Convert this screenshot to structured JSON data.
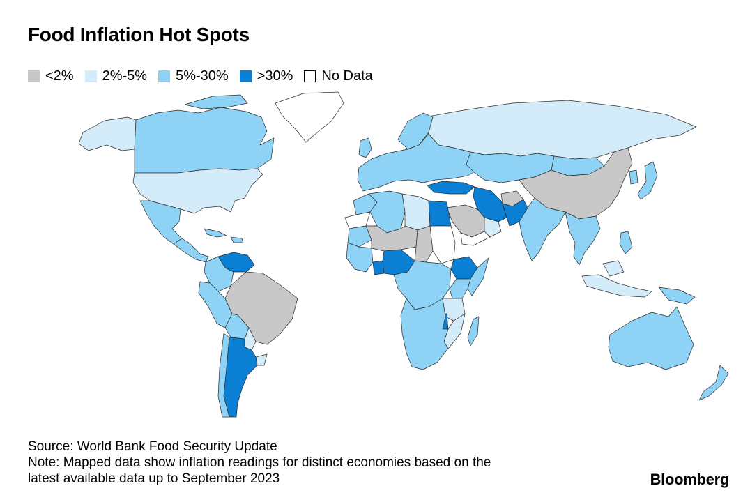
{
  "title": "Food Inflation Hot Spots",
  "legend": [
    {
      "label": "<2%",
      "color": "#c8c8c8",
      "key": "lt2"
    },
    {
      "label": "2%-5%",
      "color": "#d4ecfa",
      "key": "2to5"
    },
    {
      "label": "5%-30%",
      "color": "#8ed3f5",
      "key": "5to30"
    },
    {
      "label": ">30%",
      "color": "#0a7fd4",
      "key": "gt30"
    },
    {
      "label": "No Data",
      "color": "#ffffff",
      "key": "nodata"
    }
  ],
  "source": "Source: World Bank Food Security Update",
  "note_line1": "Note: Mapped data show inflation readings for distinct economies based on the",
  "note_line2": "latest available data up to September 2023",
  "brand": "Bloomberg",
  "regions": [
    {
      "id": "canada",
      "category": "5to30"
    },
    {
      "id": "alaska",
      "category": "2to5"
    },
    {
      "id": "greenland",
      "category": "nodata"
    },
    {
      "id": "usa",
      "category": "2to5"
    },
    {
      "id": "mexico",
      "category": "5to30"
    },
    {
      "id": "central-america",
      "category": "5to30"
    },
    {
      "id": "caribbean",
      "category": "5to30"
    },
    {
      "id": "venezuela",
      "category": "gt30"
    },
    {
      "id": "colombia",
      "category": "5to30"
    },
    {
      "id": "peru-ecuador",
      "category": "5to30"
    },
    {
      "id": "brazil",
      "category": "lt2"
    },
    {
      "id": "bolivia",
      "category": "5to30"
    },
    {
      "id": "paraguay",
      "category": "2to5"
    },
    {
      "id": "chile",
      "category": "5to30"
    },
    {
      "id": "argentina",
      "category": "gt30"
    },
    {
      "id": "uruguay",
      "category": "2to5"
    },
    {
      "id": "russia",
      "category": "2to5"
    },
    {
      "id": "europe",
      "category": "5to30"
    },
    {
      "id": "scandinavia",
      "category": "5to30"
    },
    {
      "id": "uk",
      "category": "5to30"
    },
    {
      "id": "turkey",
      "category": "gt30"
    },
    {
      "id": "iran",
      "category": "gt30"
    },
    {
      "id": "pakistan",
      "category": "gt30"
    },
    {
      "id": "afghanistan",
      "category": "lt2"
    },
    {
      "id": "kazakhstan",
      "category": "5to30"
    },
    {
      "id": "mongolia",
      "category": "5to30"
    },
    {
      "id": "china",
      "category": "lt2"
    },
    {
      "id": "india",
      "category": "5to30"
    },
    {
      "id": "se-asia",
      "category": "5to30"
    },
    {
      "id": "japan",
      "category": "5to30"
    },
    {
      "id": "korea",
      "category": "5to30"
    },
    {
      "id": "philippines",
      "category": "5to30"
    },
    {
      "id": "indonesia",
      "category": "2to5"
    },
    {
      "id": "papua",
      "category": "5to30"
    },
    {
      "id": "saudi-arabia",
      "category": "lt2"
    },
    {
      "id": "yemen",
      "category": "nodata"
    },
    {
      "id": "oman",
      "category": "2to5"
    },
    {
      "id": "egypt",
      "category": "gt30"
    },
    {
      "id": "libya",
      "category": "2to5"
    },
    {
      "id": "algeria",
      "category": "5to30"
    },
    {
      "id": "morocco",
      "category": "5to30"
    },
    {
      "id": "western-sahara",
      "category": "nodata"
    },
    {
      "id": "mauritania",
      "category": "5to30"
    },
    {
      "id": "mali-niger",
      "category": "lt2"
    },
    {
      "id": "west-africa",
      "category": "5to30"
    },
    {
      "id": "ghana",
      "category": "gt30"
    },
    {
      "id": "nigeria",
      "category": "gt30"
    },
    {
      "id": "chad",
      "category": "lt2"
    },
    {
      "id": "sudan",
      "category": "nodata"
    },
    {
      "id": "ethiopia",
      "category": "gt30"
    },
    {
      "id": "somalia",
      "category": "5to30"
    },
    {
      "id": "central-africa",
      "category": "5to30"
    },
    {
      "id": "east-africa",
      "category": "5to30"
    },
    {
      "id": "tanzania",
      "category": "2to5"
    },
    {
      "id": "malawi",
      "category": "gt30"
    },
    {
      "id": "southern-africa",
      "category": "5to30"
    },
    {
      "id": "mozambique",
      "category": "2to5"
    },
    {
      "id": "madagascar",
      "category": "5to30"
    },
    {
      "id": "australia",
      "category": "5to30"
    },
    {
      "id": "new-zealand",
      "category": "5to30"
    }
  ]
}
